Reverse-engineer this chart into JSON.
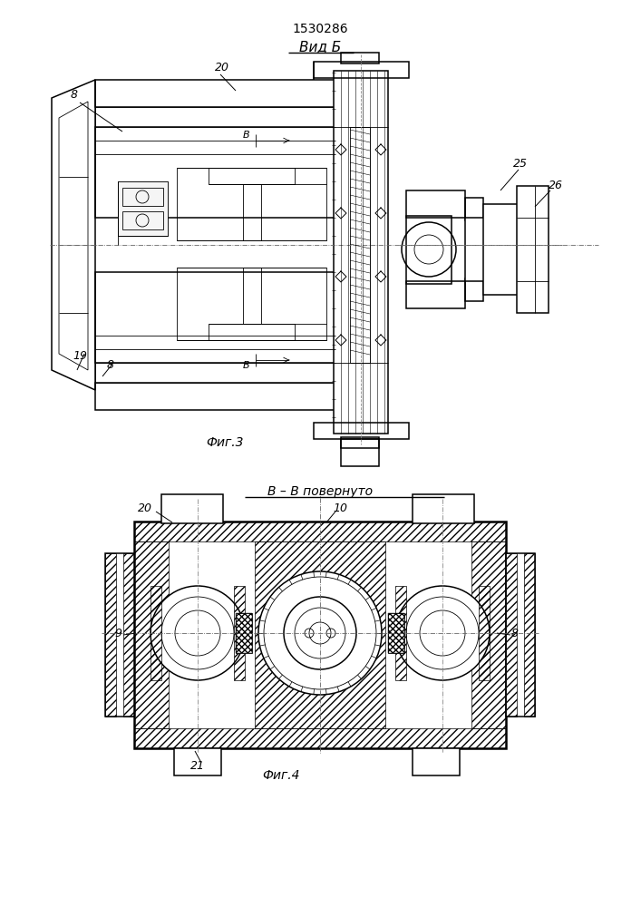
{
  "patent_number": "1530286",
  "fig3_label": "Вид Б",
  "fig3_caption": "Фиг.3",
  "fig4_section": "В – В повернуто",
  "fig4_caption": "Фиг.4",
  "bg_color": "#ffffff",
  "line_color": "#000000"
}
